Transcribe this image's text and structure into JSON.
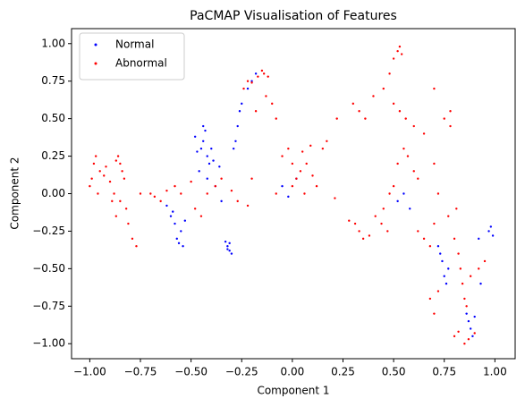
{
  "chart_data": {
    "type": "scatter",
    "title": "PaCMAP Visualisation of Features",
    "xlabel": "Component 1",
    "ylabel": "Component 2",
    "xlim": [
      -1.09,
      1.1
    ],
    "ylim": [
      -1.1,
      1.1
    ],
    "xticks": [
      {
        "value": -1.0,
        "label": "−1.00"
      },
      {
        "value": -0.75,
        "label": "−0.75"
      },
      {
        "value": -0.5,
        "label": "−0.50"
      },
      {
        "value": -0.25,
        "label": "−0.25"
      },
      {
        "value": 0,
        "label": "0.00"
      },
      {
        "value": 0.25,
        "label": "0.25"
      },
      {
        "value": 0.5,
        "label": "0.50"
      },
      {
        "value": 0.75,
        "label": "0.75"
      },
      {
        "value": 1.0,
        "label": "1.00"
      }
    ],
    "yticks": [
      {
        "value": -1.0,
        "label": "−1.00"
      },
      {
        "value": -0.75,
        "label": "−0.75"
      },
      {
        "value": -0.5,
        "label": "−0.50"
      },
      {
        "value": -0.25,
        "label": "−0.25"
      },
      {
        "value": 0,
        "label": "0.00"
      },
      {
        "value": 0.25,
        "label": "0.25"
      },
      {
        "value": 0.5,
        "label": "0.50"
      },
      {
        "value": 0.75,
        "label": "0.75"
      },
      {
        "value": 1.0,
        "label": "1.00"
      }
    ],
    "legend": "upper left",
    "series": [
      {
        "name": "Normal",
        "color": "#0000ff",
        "x": [
          -0.45,
          -0.44,
          -0.43,
          -0.42,
          -0.41,
          -0.46,
          -0.4,
          -0.39,
          -0.47,
          -0.44,
          -0.42,
          -0.38,
          -0.36,
          -0.35,
          -0.48,
          -0.6,
          -0.58,
          -0.57,
          -0.56,
          -0.55,
          -0.59,
          -0.54,
          -0.62,
          -0.53,
          -0.33,
          -0.32,
          -0.31,
          -0.3,
          -0.32,
          -0.31,
          -0.28,
          -0.27,
          -0.26,
          -0.25,
          -0.29,
          -0.22,
          -0.2,
          -0.18,
          -0.05,
          -0.02,
          0.02,
          0.52,
          0.55,
          0.58,
          0.72,
          0.74,
          0.75,
          0.76,
          0.73,
          0.77,
          0.86,
          0.87,
          0.88,
          0.89,
          0.9,
          0.97,
          0.98,
          0.99,
          0.92,
          0.93
        ],
        "values": [
          0.3,
          0.35,
          0.42,
          0.25,
          0.2,
          0.15,
          0.3,
          0.22,
          0.28,
          0.45,
          0.1,
          0.05,
          0.18,
          -0.05,
          0.38,
          -0.15,
          -0.2,
          -0.3,
          -0.33,
          -0.25,
          -0.12,
          -0.35,
          -0.08,
          -0.18,
          -0.32,
          -0.35,
          -0.38,
          -0.4,
          -0.37,
          -0.33,
          0.35,
          0.45,
          0.55,
          0.6,
          0.3,
          0.7,
          0.75,
          0.8,
          0.05,
          -0.02,
          0.1,
          -0.05,
          0.0,
          -0.1,
          -0.35,
          -0.45,
          -0.55,
          -0.6,
          -0.4,
          -0.5,
          -0.8,
          -0.85,
          -0.9,
          -0.95,
          -0.82,
          -0.25,
          -0.22,
          -0.28,
          -0.3,
          -0.6
        ]
      },
      {
        "name": "Abnormal",
        "color": "#ff0000",
        "x": [
          -1.0,
          -0.99,
          -0.98,
          -0.97,
          -0.96,
          -0.95,
          -0.93,
          -0.92,
          -0.9,
          -0.89,
          -0.88,
          -0.87,
          -0.86,
          -0.85,
          -0.84,
          -0.83,
          -0.82,
          -0.81,
          -0.79,
          -0.77,
          -0.87,
          -0.85,
          -0.75,
          -0.7,
          -0.68,
          -0.65,
          -0.62,
          -0.58,
          -0.55,
          -0.5,
          -0.48,
          -0.45,
          -0.42,
          -0.38,
          -0.35,
          -0.3,
          -0.27,
          -0.22,
          -0.2,
          -0.24,
          -0.22,
          -0.2,
          -0.17,
          -0.15,
          -0.14,
          -0.12,
          -0.1,
          -0.08,
          -0.18,
          -0.13,
          -0.05,
          -0.02,
          0.0,
          0.02,
          0.04,
          0.05,
          0.07,
          0.09,
          0.1,
          0.12,
          0.15,
          0.17,
          0.0,
          -0.08,
          0.06,
          0.21,
          0.22,
          0.28,
          0.31,
          0.33,
          0.35,
          0.38,
          0.41,
          0.44,
          0.47,
          0.3,
          0.33,
          0.36,
          0.4,
          0.45,
          0.48,
          0.5,
          0.52,
          0.53,
          0.54,
          0.5,
          0.53,
          0.56,
          0.6,
          0.55,
          0.57,
          0.52,
          0.6,
          0.62,
          0.5,
          0.48,
          0.45,
          0.62,
          0.65,
          0.68,
          0.7,
          0.72,
          0.7,
          0.65,
          0.7,
          0.75,
          0.78,
          0.78,
          0.68,
          0.7,
          0.72,
          0.8,
          0.82,
          0.83,
          0.84,
          0.85,
          0.86,
          0.8,
          0.82,
          0.85,
          0.87,
          0.9,
          0.92,
          0.95,
          0.88,
          0.81,
          0.77
        ],
        "values": [
          0.05,
          0.1,
          0.2,
          0.25,
          0.0,
          0.15,
          0.12,
          0.18,
          0.08,
          -0.05,
          0.0,
          0.22,
          0.25,
          0.2,
          0.15,
          0.1,
          -0.1,
          -0.2,
          -0.3,
          -0.35,
          -0.15,
          -0.05,
          0.0,
          0.0,
          -0.02,
          -0.05,
          0.02,
          0.05,
          0.0,
          0.08,
          -0.1,
          -0.15,
          0.0,
          0.05,
          0.1,
          0.02,
          -0.05,
          -0.08,
          0.1,
          0.7,
          0.75,
          0.74,
          0.78,
          0.82,
          0.8,
          0.78,
          0.6,
          0.5,
          0.55,
          0.65,
          0.25,
          0.3,
          0.2,
          0.1,
          0.15,
          0.28,
          0.2,
          0.32,
          0.12,
          0.05,
          0.3,
          0.35,
          0.05,
          0.0,
          0.0,
          -0.03,
          0.5,
          -0.18,
          -0.2,
          -0.25,
          -0.3,
          -0.28,
          -0.15,
          -0.2,
          -0.25,
          0.6,
          0.55,
          0.5,
          0.65,
          0.7,
          0.8,
          0.9,
          0.95,
          0.98,
          0.93,
          0.6,
          0.55,
          0.5,
          0.45,
          0.3,
          0.25,
          0.2,
          0.15,
          0.1,
          0.05,
          0.0,
          -0.1,
          -0.25,
          -0.3,
          -0.35,
          -0.2,
          0.0,
          0.2,
          0.4,
          0.7,
          0.5,
          0.45,
          0.55,
          -0.7,
          -0.8,
          -0.65,
          -0.3,
          -0.4,
          -0.5,
          -0.6,
          -0.7,
          -0.75,
          -0.95,
          -0.92,
          -1.0,
          -0.97,
          -0.93,
          -0.5,
          -0.45,
          -0.55,
          -0.1,
          -0.15
        ]
      }
    ]
  }
}
